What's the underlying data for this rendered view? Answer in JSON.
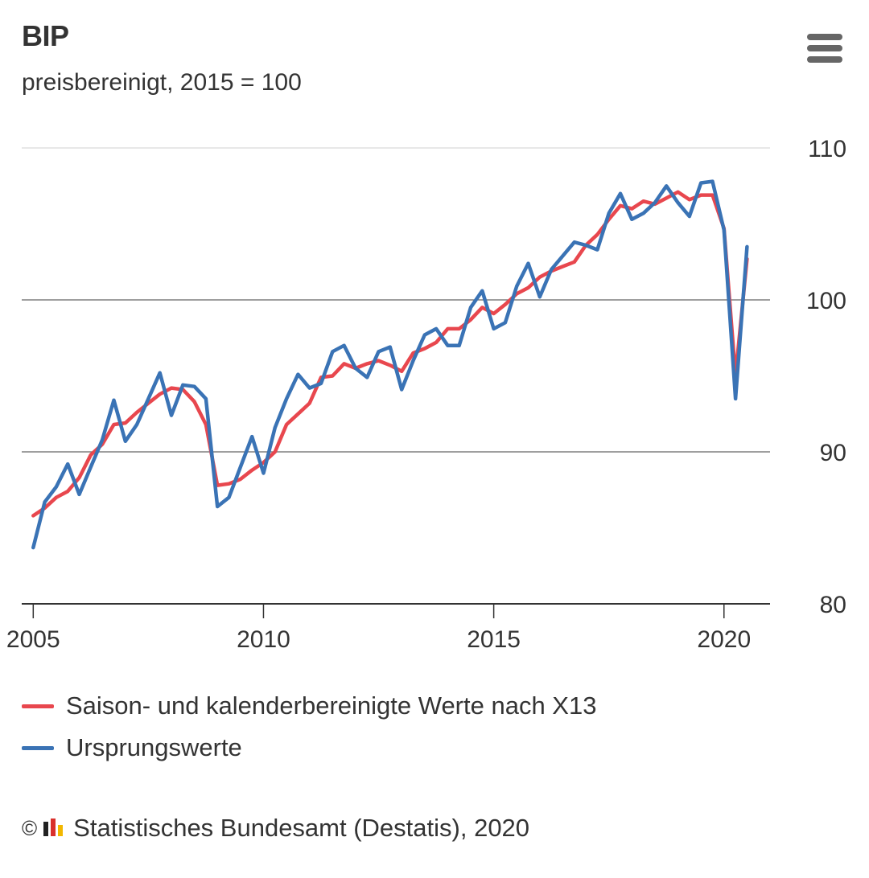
{
  "header": {
    "title": "BIP",
    "subtitle": "preisbereinigt, 2015 = 100"
  },
  "menu": {
    "icon": "hamburger-menu-icon"
  },
  "legend": {
    "items": [
      {
        "label": "Saison- und kalenderbereinigte Werte nach X13",
        "color": "#e8474e"
      },
      {
        "label": "Ursprungswerte",
        "color": "#3a73b5"
      }
    ]
  },
  "credits": {
    "copyright": "©",
    "text": "Statistisches Bundesamt (Destatis), 2020",
    "logo_icon": "destatis-logo-icon"
  },
  "chart_data": {
    "type": "line",
    "title": "BIP",
    "subtitle": "preisbereinigt, 2015 = 100",
    "xlabel": "",
    "ylabel": "",
    "xlim": [
      2004.75,
      2021.0
    ],
    "ylim": [
      80,
      110
    ],
    "y_axis_position": "right",
    "yticks": [
      80,
      90,
      100,
      110
    ],
    "xticks": [
      2005,
      2010,
      2015,
      2020
    ],
    "grid": true,
    "legend_position": "bottom",
    "x": [
      2005.0,
      2005.25,
      2005.5,
      2005.75,
      2006.0,
      2006.25,
      2006.5,
      2006.75,
      2007.0,
      2007.25,
      2007.5,
      2007.75,
      2008.0,
      2008.25,
      2008.5,
      2008.75,
      2009.0,
      2009.25,
      2009.5,
      2009.75,
      2010.0,
      2010.25,
      2010.5,
      2010.75,
      2011.0,
      2011.25,
      2011.5,
      2011.75,
      2012.0,
      2012.25,
      2012.5,
      2012.75,
      2013.0,
      2013.25,
      2013.5,
      2013.75,
      2014.0,
      2014.25,
      2014.5,
      2014.75,
      2015.0,
      2015.25,
      2015.5,
      2015.75,
      2016.0,
      2016.25,
      2016.5,
      2016.75,
      2017.0,
      2017.25,
      2017.5,
      2017.75,
      2018.0,
      2018.25,
      2018.5,
      2018.75,
      2019.0,
      2019.25,
      2019.5,
      2019.75,
      2020.0,
      2020.25,
      2020.5
    ],
    "series": [
      {
        "name": "Saison- und kalenderbereinigte Werte nach X13",
        "color": "#e8474e",
        "values": [
          85.8,
          86.3,
          87.0,
          87.4,
          88.3,
          89.8,
          90.5,
          91.8,
          91.9,
          92.6,
          93.2,
          93.8,
          94.2,
          94.1,
          93.3,
          91.8,
          87.8,
          87.9,
          88.2,
          88.8,
          89.3,
          90.0,
          91.8,
          92.5,
          93.2,
          94.9,
          95.0,
          95.8,
          95.5,
          95.8,
          96.0,
          95.7,
          95.3,
          96.5,
          96.8,
          97.2,
          98.1,
          98.1,
          98.7,
          99.5,
          99.1,
          99.7,
          100.4,
          100.8,
          101.5,
          101.9,
          102.2,
          102.5,
          103.6,
          104.3,
          105.3,
          106.2,
          106.0,
          106.5,
          106.3,
          106.7,
          107.1,
          106.6,
          106.9,
          106.9,
          104.7,
          95.0,
          102.7
        ]
      },
      {
        "name": "Ursprungswerte",
        "color": "#3a73b5",
        "values": [
          83.7,
          86.7,
          87.7,
          89.2,
          87.2,
          89.0,
          90.8,
          93.4,
          90.7,
          91.8,
          93.5,
          95.2,
          92.4,
          94.4,
          94.3,
          93.5,
          86.4,
          87.0,
          89.0,
          91.0,
          88.6,
          91.6,
          93.5,
          95.1,
          94.2,
          94.5,
          96.6,
          97.0,
          95.5,
          94.9,
          96.6,
          96.9,
          94.1,
          96.0,
          97.7,
          98.1,
          97.0,
          97.0,
          99.5,
          100.6,
          98.1,
          98.5,
          100.9,
          102.4,
          100.2,
          102.0,
          102.9,
          103.8,
          103.6,
          103.3,
          105.7,
          107.0,
          105.3,
          105.7,
          106.4,
          107.5,
          106.4,
          105.5,
          107.7,
          107.8,
          104.6,
          93.5,
          103.5
        ]
      }
    ],
    "colors": {
      "gridline": "#d9d9d9",
      "gridline_major": "#666666",
      "axis_line": "#333333"
    }
  }
}
